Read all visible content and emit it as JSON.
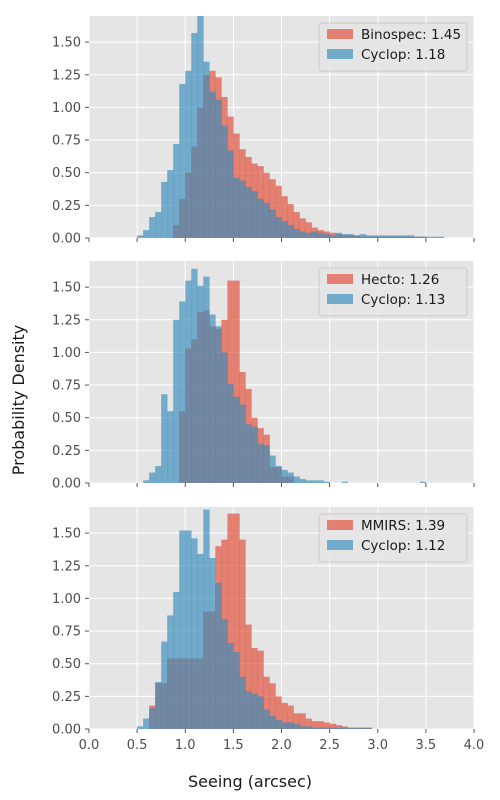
{
  "figure": {
    "ylabel": "Probability Density",
    "xlabel": "Seeing (arcsec)"
  },
  "colors": {
    "panel_bg": "#e5e5e5",
    "grid": "#ffffff",
    "red": "#e24a33",
    "blue": "#348abd"
  },
  "chart_data": [
    {
      "type": "histogram",
      "xlim": [
        0.0,
        4.0
      ],
      "ylim": [
        0.0,
        1.7
      ],
      "x_ticks": [
        "0.0",
        "0.5",
        "1.0",
        "1.5",
        "2.0",
        "2.5",
        "3.0",
        "3.5",
        "4.0"
      ],
      "x_tick_values": [
        0,
        0.5,
        1,
        1.5,
        2,
        2.5,
        3,
        3.5,
        4
      ],
      "y_ticks": [
        "0.00",
        "0.25",
        "0.50",
        "0.75",
        "1.00",
        "1.25",
        "1.50"
      ],
      "y_tick_values": [
        0,
        0.25,
        0.5,
        0.75,
        1.0,
        1.25,
        1.5
      ],
      "x_tick_labels_visible": false,
      "grid": true,
      "legend_placement": "top-right",
      "bin_start": 0.5,
      "bin_width": 0.0625,
      "series": [
        {
          "name": "Binospec: 1.45",
          "color": "red",
          "values": [
            0,
            0,
            0,
            0,
            0,
            0,
            0.1,
            0.3,
            0.5,
            0.7,
            1.0,
            1.25,
            1.28,
            1.23,
            1.08,
            0.93,
            0.8,
            0.68,
            0.62,
            0.57,
            0.55,
            0.5,
            0.45,
            0.4,
            0.32,
            0.26,
            0.2,
            0.15,
            0.12,
            0.08,
            0.06,
            0.05,
            0.04,
            0.03,
            0.02,
            0.02,
            0.02,
            0.01,
            0.01,
            0.01,
            0.01,
            0.01,
            0.01,
            0.01,
            0.01,
            0.01,
            0.01,
            0.01,
            0,
            0,
            0,
            0,
            0,
            0,
            0,
            0
          ]
        },
        {
          "name": "Cyclop: 1.18",
          "color": "blue",
          "values": [
            0.02,
            0.06,
            0.16,
            0.2,
            0.43,
            0.52,
            0.72,
            1.18,
            1.28,
            1.57,
            1.73,
            1.35,
            1.12,
            1.06,
            0.86,
            0.67,
            0.46,
            0.44,
            0.39,
            0.36,
            0.3,
            0.27,
            0.22,
            0.16,
            0.13,
            0.1,
            0.07,
            0.05,
            0.04,
            0.05,
            0.04,
            0.03,
            0.02,
            0.04,
            0.03,
            0.03,
            0.02,
            0.03,
            0.02,
            0.02,
            0.02,
            0.02,
            0.02,
            0.02,
            0.02,
            0.02,
            0.01,
            0.01,
            0.01,
            0.01,
            0.01,
            0,
            0,
            0,
            0,
            0
          ]
        }
      ]
    },
    {
      "type": "histogram",
      "xlim": [
        0.0,
        4.0
      ],
      "ylim": [
        0.0,
        1.7
      ],
      "x_ticks": [
        "0.0",
        "0.5",
        "1.0",
        "1.5",
        "2.0",
        "2.5",
        "3.0",
        "3.5",
        "4.0"
      ],
      "x_tick_values": [
        0,
        0.5,
        1,
        1.5,
        2,
        2.5,
        3,
        3.5,
        4
      ],
      "y_ticks": [
        "0.00",
        "0.25",
        "0.50",
        "0.75",
        "1.00",
        "1.25",
        "1.50"
      ],
      "y_tick_values": [
        0,
        0.25,
        0.5,
        0.75,
        1.0,
        1.25,
        1.5
      ],
      "x_tick_labels_visible": false,
      "grid": true,
      "legend_placement": "top-right",
      "bin_start": 0.5,
      "bin_width": 0.0625,
      "series": [
        {
          "name": "Hecto: 1.26",
          "color": "red",
          "values": [
            0,
            0,
            0,
            0,
            0,
            0,
            0,
            0.55,
            1.03,
            1.1,
            1.31,
            1.32,
            1.2,
            1.18,
            1.25,
            1.55,
            1.55,
            0.85,
            0.72,
            0.5,
            0.42,
            0.37,
            0.12,
            0.12,
            0.05,
            0.05,
            0,
            0,
            0,
            0,
            0,
            0,
            0,
            0,
            0,
            0,
            0,
            0,
            0,
            0,
            0,
            0,
            0,
            0,
            0,
            0,
            0,
            0,
            0,
            0,
            0,
            0,
            0,
            0,
            0,
            0
          ]
        },
        {
          "name": "Cyclop: 1.13",
          "color": "blue",
          "values": [
            0,
            0.02,
            0.08,
            0.13,
            0.68,
            0.55,
            1.25,
            1.39,
            1.55,
            1.64,
            1.51,
            1.58,
            1.29,
            1.2,
            1.0,
            0.76,
            0.66,
            0.6,
            0.45,
            0.43,
            0.3,
            0.29,
            0.21,
            0.13,
            0.1,
            0.08,
            0.05,
            0.03,
            0.02,
            0.02,
            0.02,
            0.01,
            0,
            0,
            0.01,
            0,
            0,
            0,
            0,
            0,
            0,
            0,
            0,
            0,
            0,
            0,
            0,
            0.01,
            0,
            0,
            0,
            0,
            0,
            0,
            0,
            0
          ]
        }
      ]
    },
    {
      "type": "histogram",
      "xlim": [
        0.0,
        4.0
      ],
      "ylim": [
        0.0,
        1.7
      ],
      "x_ticks": [
        "0.0",
        "0.5",
        "1.0",
        "1.5",
        "2.0",
        "2.5",
        "3.0",
        "3.5",
        "4.0"
      ],
      "x_tick_values": [
        0,
        0.5,
        1,
        1.5,
        2,
        2.5,
        3,
        3.5,
        4
      ],
      "y_ticks": [
        "0.00",
        "0.25",
        "0.50",
        "0.75",
        "1.00",
        "1.25",
        "1.50"
      ],
      "y_tick_values": [
        0,
        0.25,
        0.5,
        0.75,
        1.0,
        1.25,
        1.5
      ],
      "x_tick_labels_visible": true,
      "grid": true,
      "legend_placement": "top-right",
      "bin_start": 0.5,
      "bin_width": 0.0625,
      "series": [
        {
          "name": "MMIRS: 1.39",
          "color": "red",
          "values": [
            0,
            0,
            0.18,
            0.35,
            0.35,
            0.54,
            0.54,
            0.54,
            0.54,
            0.54,
            0.54,
            0.9,
            0.9,
            1.4,
            1.45,
            1.65,
            1.65,
            1.45,
            0.8,
            0.62,
            0.6,
            0.4,
            0.35,
            0.25,
            0.2,
            0.18,
            0.12,
            0.12,
            0.08,
            0.06,
            0.06,
            0.05,
            0.04,
            0.03,
            0.02,
            0.01,
            0.01,
            0.01,
            0.01,
            0,
            0,
            0,
            0,
            0,
            0,
            0,
            0,
            0,
            0,
            0,
            0,
            0,
            0,
            0,
            0,
            0
          ]
        },
        {
          "name": "Cyclop: 1.12",
          "color": "blue",
          "values": [
            0.02,
            0.08,
            0.16,
            0.36,
            0.67,
            0.87,
            1.05,
            1.52,
            1.52,
            1.46,
            1.34,
            1.68,
            1.31,
            1.12,
            0.84,
            0.66,
            0.59,
            0.4,
            0.29,
            0.27,
            0.25,
            0.15,
            0.1,
            0.07,
            0.05,
            0.05,
            0.04,
            0.02,
            0.02,
            0.01,
            0.01,
            0.01,
            0.01,
            0.01,
            0.01,
            0.01,
            0.01,
            0.01,
            0.01,
            0,
            0,
            0,
            0,
            0,
            0,
            0,
            0,
            0,
            0,
            0,
            0,
            0,
            0,
            0,
            0,
            0
          ]
        }
      ]
    }
  ]
}
